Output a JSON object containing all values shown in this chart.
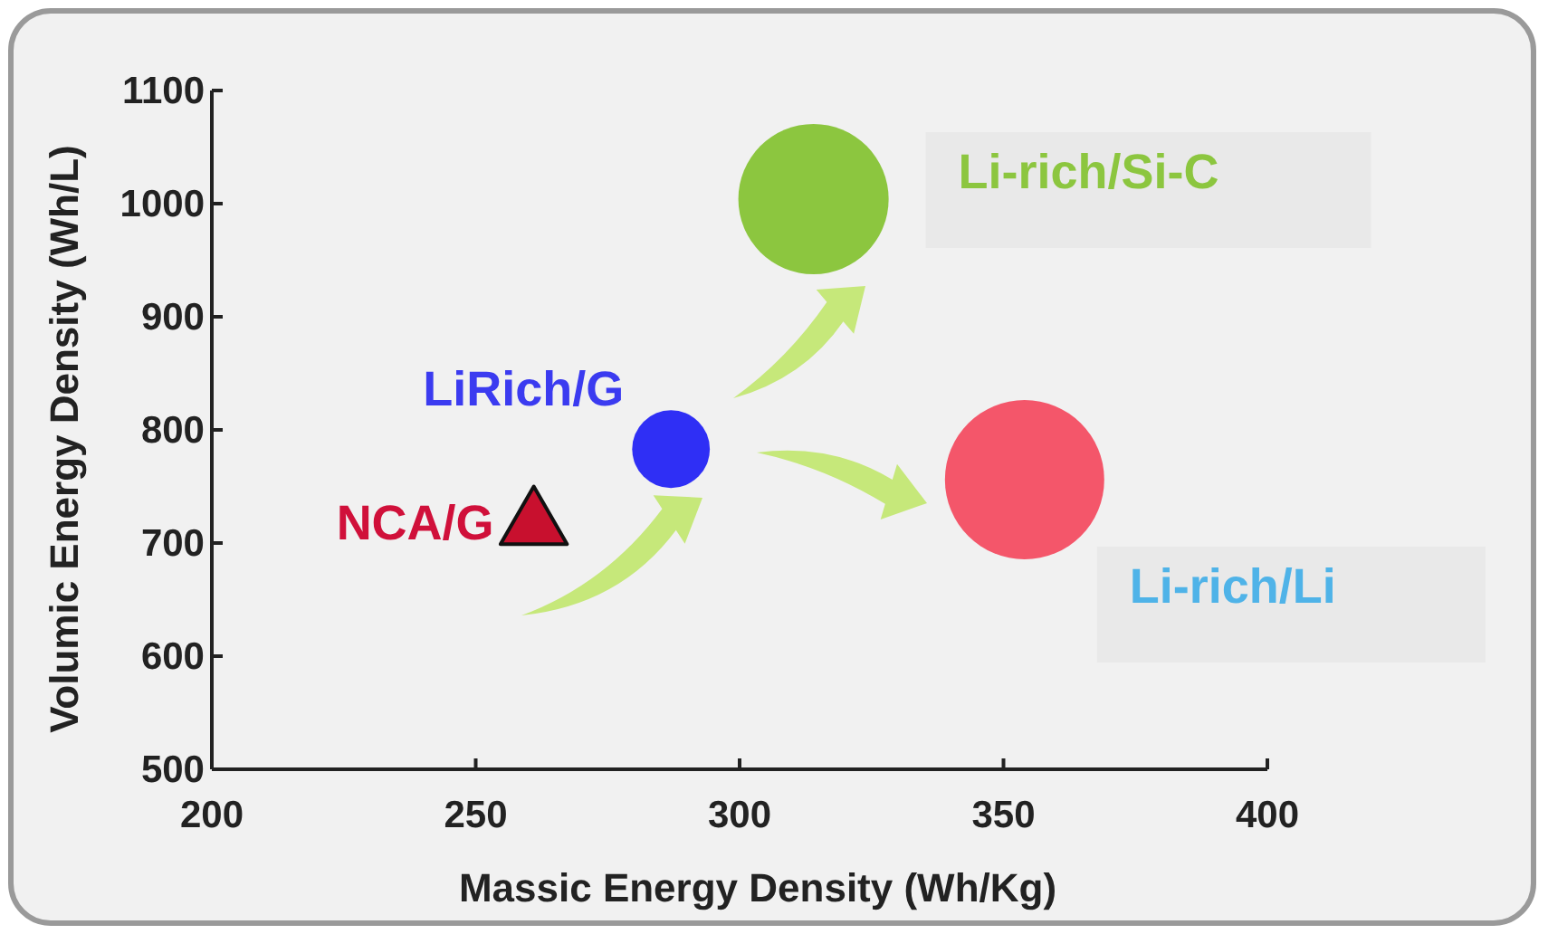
{
  "chart_data": {
    "type": "scatter",
    "xlabel": "Massic Energy Density (Wh/Kg)",
    "ylabel": "Volumic Energy Density (Wh/L)",
    "xlim": [
      200,
      400
    ],
    "ylim": [
      500,
      1100
    ],
    "xticks": [
      200,
      250,
      300,
      350,
      400
    ],
    "yticks": [
      500,
      600,
      700,
      800,
      900,
      1000,
      1100
    ],
    "grid": false,
    "legend": false,
    "series": [
      {
        "name": "NCA/G",
        "marker": "triangle",
        "color": "#c8102e",
        "x": [
          261
        ],
        "values": [
          716
        ]
      },
      {
        "name": "LiRich/G",
        "marker": "circle",
        "color": "#2f2ff5",
        "x": [
          287
        ],
        "values": [
          783
        ]
      },
      {
        "name": "Li-rich/Si-C",
        "type": "bubble",
        "color": "#8cc63f",
        "x": [
          314
        ],
        "values": [
          1004
        ],
        "sizes": [
          0.89
        ]
      },
      {
        "type": "bubble",
        "color": "#f4566a",
        "x": [
          354
        ],
        "values": [
          756
        ],
        "sizes": [
          1
        ]
      }
    ],
    "annotations": [
      {
        "text": "Li-rich/Li",
        "x": 354,
        "y": 756
      }
    ]
  }
}
